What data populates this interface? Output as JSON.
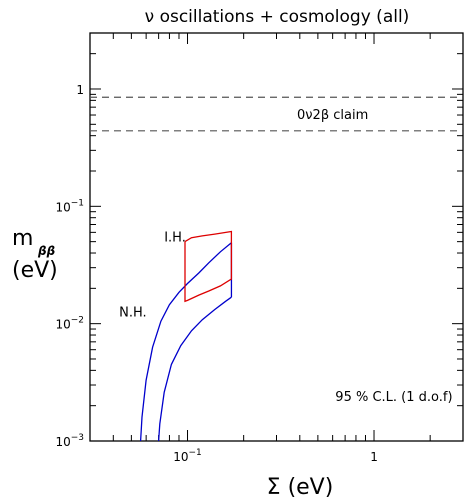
{
  "chart_data": {
    "type": "line",
    "title": "ν oscillations + cosmology (all)",
    "xlabel": "Σ (eV)",
    "ylabel_main": "m",
    "ylabel_sub": "ββ",
    "ylabel_unit": "(eV)",
    "x_scale": "log",
    "y_scale": "log",
    "xlim": [
      0.03,
      3
    ],
    "ylim": [
      0.001,
      3
    ],
    "x_ticks": [
      {
        "value": 0.1,
        "base": "10",
        "exp": "−1"
      },
      {
        "value": 1,
        "text": "1"
      }
    ],
    "y_ticks": [
      {
        "value": 0.001,
        "base": "10",
        "exp": "−3"
      },
      {
        "value": 0.01,
        "base": "10",
        "exp": "−2"
      },
      {
        "value": 0.1,
        "base": "10",
        "exp": "−1"
      },
      {
        "value": 1,
        "text": "1"
      }
    ],
    "claim_band": {
      "label": "0ν2β claim",
      "lower": 0.44,
      "upper": 0.85,
      "style": "dashed",
      "color": "#555555"
    },
    "series": [
      {
        "name": "N.H.",
        "color": "#0000cc",
        "upper": [
          [
            0.056,
            0.001
          ],
          [
            0.057,
            0.0016
          ],
          [
            0.06,
            0.0033
          ],
          [
            0.065,
            0.0063
          ],
          [
            0.072,
            0.0105
          ],
          [
            0.08,
            0.0145
          ],
          [
            0.09,
            0.0185
          ],
          [
            0.1,
            0.022
          ],
          [
            0.115,
            0.027
          ],
          [
            0.13,
            0.033
          ],
          [
            0.15,
            0.041
          ],
          [
            0.172,
            0.049
          ]
        ],
        "lower": [
          [
            0.07,
            0.001
          ],
          [
            0.071,
            0.0014
          ],
          [
            0.075,
            0.0026
          ],
          [
            0.082,
            0.0045
          ],
          [
            0.092,
            0.0065
          ],
          [
            0.105,
            0.0087
          ],
          [
            0.12,
            0.0108
          ],
          [
            0.14,
            0.0132
          ],
          [
            0.16,
            0.0155
          ],
          [
            0.172,
            0.0168
          ]
        ],
        "right_edge": [
          0.172,
          0.0168,
          0.049
        ]
      },
      {
        "name": "I.H.",
        "color": "#dd0000",
        "outline": [
          [
            0.097,
            0.05
          ],
          [
            0.105,
            0.054
          ],
          [
            0.12,
            0.056
          ],
          [
            0.14,
            0.058
          ],
          [
            0.172,
            0.061
          ],
          [
            0.172,
            0.024
          ],
          [
            0.15,
            0.021
          ],
          [
            0.13,
            0.019
          ],
          [
            0.115,
            0.0175
          ],
          [
            0.1,
            0.0158
          ],
          [
            0.097,
            0.0155
          ],
          [
            0.097,
            0.05
          ]
        ]
      }
    ],
    "annotations": [
      {
        "text": "I.H.",
        "x": 0.075,
        "y": 0.05
      },
      {
        "text": "N.H.",
        "x": 0.043,
        "y": 0.0115
      },
      {
        "text": "95 % C.L.  (1 d.o.f)",
        "x": 0.62,
        "y": 0.0022
      }
    ]
  }
}
